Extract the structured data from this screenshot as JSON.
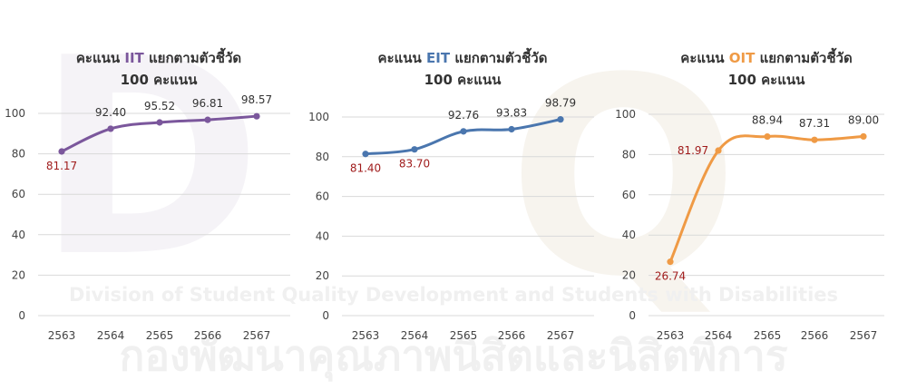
{
  "watermark": {
    "english": "Division of Student Quality Development and Students with Disabilities",
    "thai": "กองพัฒนาคุณภาพนิสิตและนิสิตพิการ"
  },
  "chart_data": [
    {
      "type": "line",
      "title_prefix": "คะแนน ",
      "title_highlight": "IIT",
      "title_suffix": " แยกตามตัวชี้วัด",
      "title_line2": "100 คะแนน",
      "categories": [
        "2563",
        "2564",
        "2565",
        "2566",
        "2567"
      ],
      "series": [
        {
          "values": [
            81.17,
            92.4,
            95.52,
            96.81,
            98.57
          ]
        }
      ],
      "value_labels": [
        "81.17",
        "92.40",
        "95.52",
        "96.81",
        "98.57"
      ],
      "label_colors": [
        "#a01c1c",
        "#333333",
        "#333333",
        "#333333",
        "#333333"
      ],
      "ylim": [
        0,
        100
      ],
      "yticks": [
        "0",
        "20",
        "40",
        "60",
        "80",
        "100"
      ],
      "grid": true,
      "line_color": "#7b579c",
      "highlight_color": "#7b579c"
    },
    {
      "type": "line",
      "title_prefix": "คะแนน ",
      "title_highlight": "EIT",
      "title_suffix": " แยกตามตัวชี้วัด",
      "title_line2": "100 คะแนน",
      "categories": [
        "2563",
        "2564",
        "2565",
        "2566",
        "2567"
      ],
      "series": [
        {
          "values": [
            81.4,
            83.7,
            92.76,
            93.83,
            98.79
          ]
        }
      ],
      "value_labels": [
        "81.40",
        "83.70",
        "92.76",
        "93.83",
        "98.79"
      ],
      "label_colors": [
        "#a01c1c",
        "#a01c1c",
        "#333333",
        "#333333",
        "#333333"
      ],
      "ylim": [
        0,
        100
      ],
      "yticks": [
        "0",
        "20",
        "40",
        "60",
        "80",
        "100"
      ],
      "grid": true,
      "line_color": "#4a76ae",
      "highlight_color": "#4a76ae"
    },
    {
      "type": "line",
      "title_prefix": "คะแนน ",
      "title_highlight": "OIT",
      "title_suffix": " แยกตามตัวชี้วัด",
      "title_line2": "100 คะแนน",
      "categories": [
        "2563",
        "2564",
        "2565",
        "2566",
        "2567"
      ],
      "series": [
        {
          "values": [
            26.74,
            81.97,
            88.94,
            87.31,
            89.0
          ]
        }
      ],
      "value_labels": [
        "26.74",
        "81.97",
        "88.94",
        "87.31",
        "89.00"
      ],
      "label_colors": [
        "#a01c1c",
        "#a01c1c",
        "#333333",
        "#333333",
        "#333333"
      ],
      "ylim": [
        0,
        100
      ],
      "yticks": [
        "0",
        "20",
        "40",
        "60",
        "80",
        "100"
      ],
      "grid": true,
      "line_color": "#ef9a45",
      "highlight_color": "#ef9a45"
    }
  ]
}
